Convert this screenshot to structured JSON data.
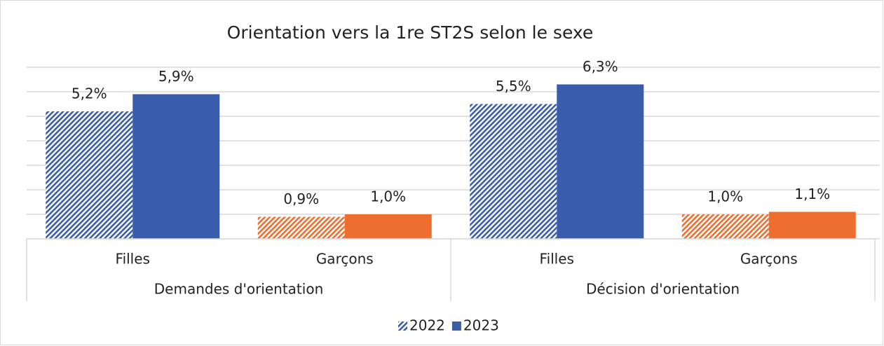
{
  "chart_data": {
    "type": "bar",
    "title": "Orientation vers la 1re ST2S selon le sexe",
    "categories": [
      "Filles",
      "Garçons",
      "Filles",
      "Garçons"
    ],
    "groups": [
      "Demandes d'orientation",
      "Décision d'orientation"
    ],
    "series": [
      {
        "name": "2022",
        "pattern": "hatch",
        "colors": [
          "#3a5dab",
          "#ee6e2f",
          "#3a5dab",
          "#ee6e2f"
        ],
        "values": [
          5.2,
          0.9,
          5.5,
          1.0
        ],
        "value_labels": [
          "5,2%",
          "0,9%",
          "5,5%",
          "1,0%"
        ]
      },
      {
        "name": "2023",
        "pattern": "solid",
        "colors": [
          "#3a5dab",
          "#ee6e2f",
          "#3a5dab",
          "#ee6e2f"
        ],
        "values": [
          5.9,
          1.0,
          6.3,
          1.1
        ],
        "value_labels": [
          "5,9%",
          "1,0%",
          "6,3%",
          "1,1%"
        ]
      }
    ],
    "ylim": [
      0,
      7
    ],
    "yticks": [
      0,
      1,
      2,
      3,
      4,
      5,
      6,
      7
    ],
    "grid": true,
    "legend": "bottom"
  }
}
